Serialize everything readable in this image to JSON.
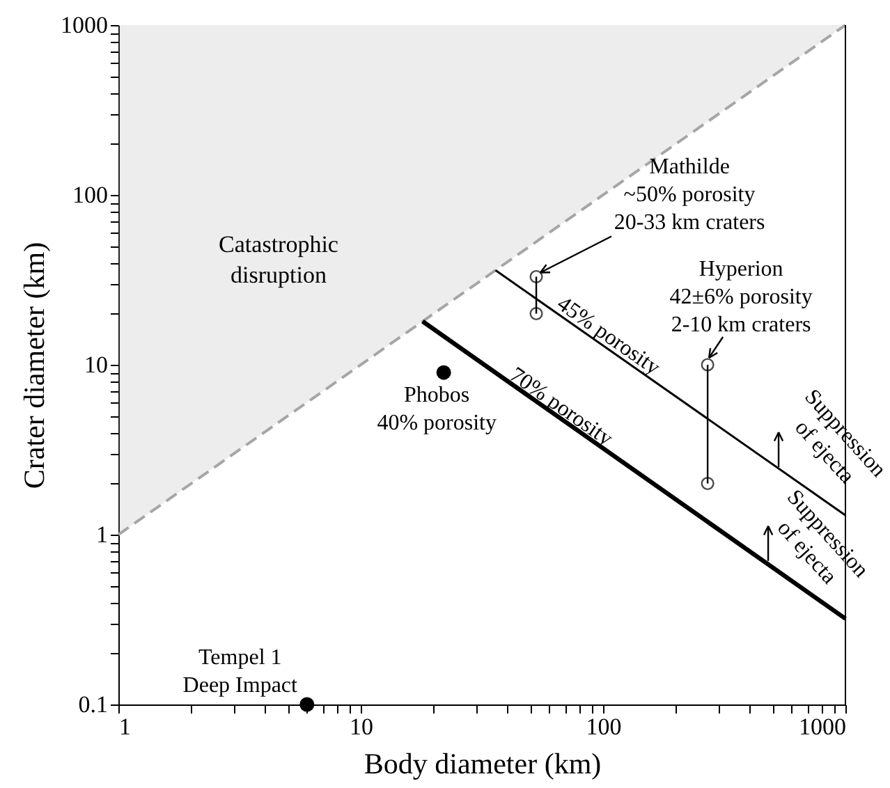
{
  "chart_data": {
    "type": "line",
    "xlabel": "Body diameter (km)",
    "ylabel": "Crater diameter (km)",
    "log": "xy",
    "grid": false,
    "xlim": [
      1,
      1000
    ],
    "ylim": [
      0.1,
      1000
    ],
    "xticks": [
      1,
      {
        "value": 2,
        "label": null
      },
      {
        "value": 3,
        "label": null
      },
      {
        "value": 4,
        "label": null
      },
      {
        "value": 5,
        "label": null
      },
      {
        "value": 6,
        "label": null
      },
      {
        "value": 7,
        "label": null
      },
      {
        "value": 8,
        "label": null
      },
      {
        "value": 9,
        "label": null
      },
      10,
      {
        "value": 20,
        "label": null
      },
      {
        "value": 30,
        "label": null
      },
      {
        "value": 40,
        "label": null
      },
      {
        "value": 50,
        "label": null
      },
      {
        "value": 60,
        "label": null
      },
      {
        "value": 70,
        "label": null
      },
      {
        "value": 80,
        "label": null
      },
      {
        "value": 90,
        "label": null
      },
      100,
      {
        "value": 200,
        "label": null
      },
      {
        "value": 300,
        "label": null
      },
      {
        "value": 400,
        "label": null
      },
      {
        "value": 500,
        "label": null
      },
      {
        "value": 600,
        "label": null
      },
      {
        "value": 700,
        "label": null
      },
      {
        "value": 800,
        "label": null
      },
      {
        "value": 900,
        "label": null
      },
      1000
    ],
    "yticks": [
      0.1,
      {
        "value": 0.2,
        "label": null
      },
      {
        "value": 0.3,
        "label": null
      },
      {
        "value": 0.4,
        "label": null
      },
      {
        "value": 0.5,
        "label": null
      },
      {
        "value": 0.6,
        "label": null
      },
      {
        "value": 0.7,
        "label": null
      },
      {
        "value": 0.8,
        "label": null
      },
      {
        "value": 0.9,
        "label": null
      },
      1,
      {
        "value": 2,
        "label": null
      },
      {
        "value": 3,
        "label": null
      },
      {
        "value": 4,
        "label": null
      },
      {
        "value": 5,
        "label": null
      },
      {
        "value": 6,
        "label": null
      },
      {
        "value": 7,
        "label": null
      },
      {
        "value": 8,
        "label": null
      },
      {
        "value": 9,
        "label": null
      },
      10,
      {
        "value": 20,
        "label": null
      },
      {
        "value": 30,
        "label": null
      },
      {
        "value": 40,
        "label": null
      },
      {
        "value": 50,
        "label": null
      },
      {
        "value": 60,
        "label": null
      },
      {
        "value": 70,
        "label": null
      },
      {
        "value": 80,
        "label": null
      },
      {
        "value": 90,
        "label": null
      },
      100,
      {
        "value": 200,
        "label": null
      },
      {
        "value": 300,
        "label": null
      },
      {
        "value": 400,
        "label": null
      },
      {
        "value": 500,
        "label": null
      },
      {
        "value": 600,
        "label": null
      },
      {
        "value": 700,
        "label": null
      },
      {
        "value": 800,
        "label": null
      },
      {
        "value": 900,
        "label": null
      },
      1000
    ],
    "series": [
      {
        "color": "#a6a6a6",
        "line_style": "dashed",
        "x": [
          1,
          1000
        ],
        "values": [
          1,
          1000
        ],
        "lower": [
          1,
          1000
        ],
        "upper": [
          1000,
          1000
        ]
      },
      {
        "name": "70% porosity",
        "color": "#000000",
        "x": [
          18,
          1000
        ],
        "values": [
          18,
          0.32
        ]
      },
      {
        "name": "45% porosity",
        "color": "#000000",
        "x": [
          36,
          1000
        ],
        "values": [
          36,
          1.3
        ]
      },
      {
        "color": "#000000",
        "marker": "circle",
        "x": [
          53,
          53
        ],
        "values": [
          20,
          33
        ]
      },
      {
        "color": "#000000",
        "marker": "circle",
        "x": [
          270,
          270
        ],
        "values": [
          2,
          10
        ]
      },
      {
        "type": "scatter",
        "color": "#000000",
        "marker": "circle",
        "x": [
          22
        ],
        "values": [
          9
        ]
      },
      {
        "type": "scatter",
        "color": "#000000",
        "marker": "circle",
        "x": [
          6
        ],
        "values": [
          0.1
        ]
      }
    ],
    "annotations": [
      "Catastrophic\ndisruption",
      {
        "text": "Mathilde\n~50% porosity\n20-33 km craters",
        "x": 53,
        "y": 33
      },
      {
        "text": "Hyperion\n42±6% porosity\n2-10 km craters",
        "x": 270,
        "y": 10
      },
      {
        "text": "Phobos\n40% porosity",
        "x": 22,
        "y": 9
      },
      {
        "text": "Tempel 1\nDeep Impact",
        "x": 6,
        "y": 0.1
      },
      {
        "text": "Suppression\nof ejecta",
        "x": 530,
        "y": 2.5
      },
      {
        "text": "Suppression\nof ejecta",
        "x": 480,
        "y": 0.7
      }
    ]
  }
}
